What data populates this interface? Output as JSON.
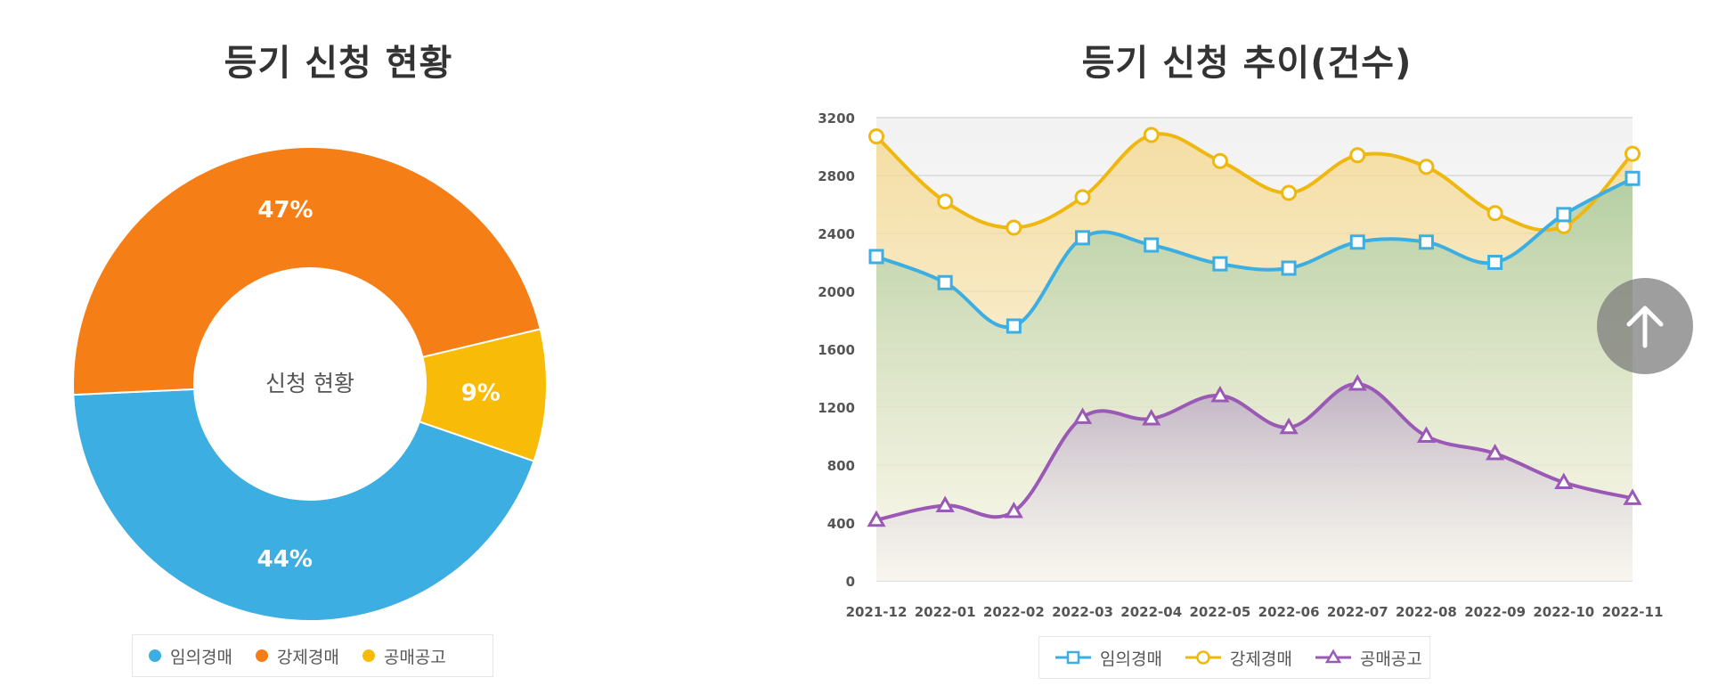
{
  "donut": {
    "title": "등기 신청 현황",
    "center_label": "신청 현황",
    "legend": [
      "임의경매",
      "강제경매",
      "공매공고"
    ]
  },
  "line": {
    "title": "등기 신청 추이(건수)",
    "legend": [
      "임의경매",
      "강제경매",
      "공매공고"
    ]
  },
  "colors": {
    "blue": "#3daee2",
    "orange": "#f57e17",
    "yellow": "#f7bb08",
    "gold": "#efb810",
    "purple": "#9b59b6"
  },
  "icons": {
    "scroll_top": "arrow-up-icon"
  },
  "chart_data": [
    {
      "type": "pie",
      "title": "등기 신청 현황",
      "labels": [
        "임의경매",
        "강제경매",
        "공매공고"
      ],
      "values": [
        44,
        47,
        9
      ],
      "display_labels": [
        "44%",
        "47%",
        "9%"
      ],
      "legend_position": "bottom"
    },
    {
      "type": "line",
      "title": "등기 신청 추이(건수)",
      "categories": [
        "2021-12",
        "2022-01",
        "2022-02",
        "2022-03",
        "2022-04",
        "2022-05",
        "2022-06",
        "2022-07",
        "2022-08",
        "2022-09",
        "2022-10",
        "2022-11"
      ],
      "series": [
        {
          "name": "임의경매",
          "values": [
            2240,
            2060,
            1760,
            2370,
            2320,
            2190,
            2160,
            2340,
            2340,
            2200,
            2530,
            2780
          ]
        },
        {
          "name": "강제경매",
          "values": [
            3070,
            2620,
            2440,
            2650,
            3080,
            2900,
            2680,
            2940,
            2860,
            2540,
            2450,
            2950
          ]
        },
        {
          "name": "공매공고",
          "values": [
            420,
            520,
            480,
            1130,
            1120,
            1280,
            1060,
            1360,
            1000,
            880,
            680,
            570
          ]
        }
      ],
      "yticks": [
        "0",
        "400",
        "800",
        "1200",
        "1600",
        "2000",
        "2400",
        "2800",
        "3200"
      ],
      "ylim": [
        0,
        3200
      ],
      "grid": true,
      "legend_position": "bottom"
    }
  ]
}
